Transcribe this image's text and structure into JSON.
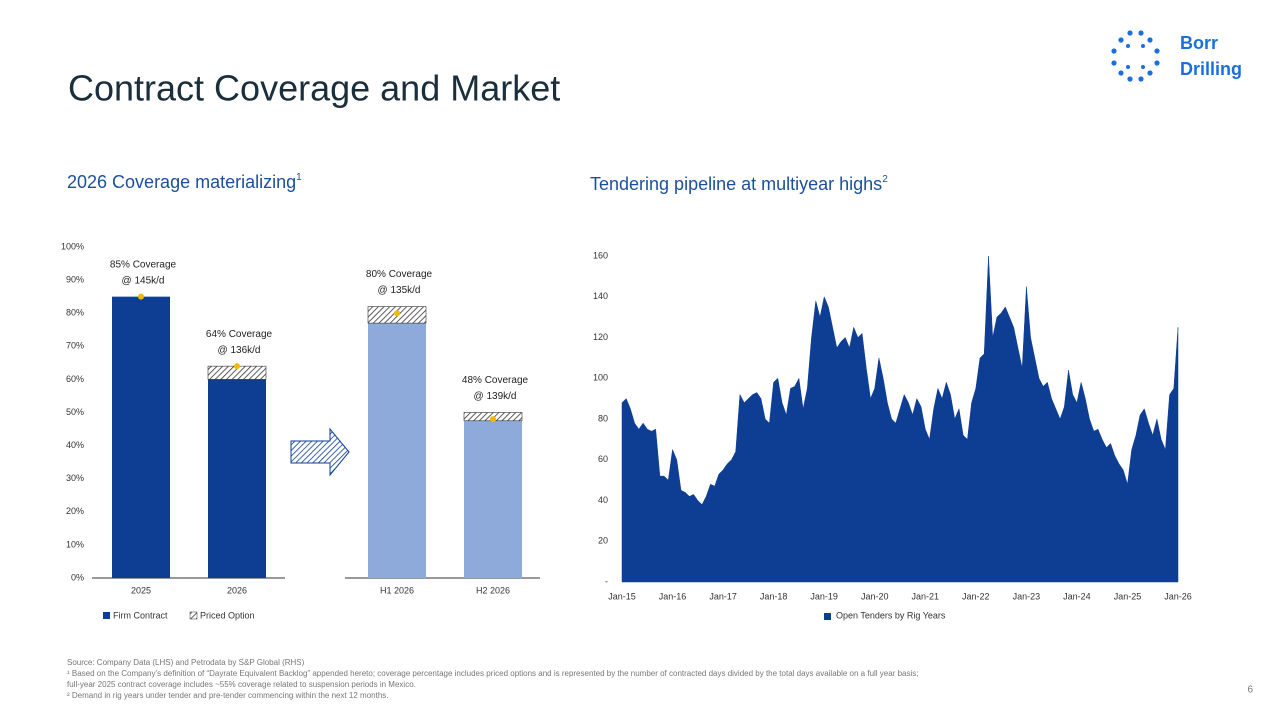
{
  "header": {
    "title": "Contract Coverage and Market",
    "logo": [
      "Borr",
      "Drilling"
    ]
  },
  "chart_data": [
    {
      "type": "bar",
      "stacked": true,
      "title": "2026 Coverage materializing",
      "title_note": "1",
      "categories": [
        "2025",
        "2026",
        "H1 2026",
        "H2 2026"
      ],
      "series": [
        {
          "name": "Firm Contract",
          "color": "#0d3e94",
          "colors": [
            "#0d3e94",
            "#0d3e94",
            "#8eaadb",
            "#8eaadb"
          ],
          "values": [
            85,
            60,
            77,
            47.5
          ]
        },
        {
          "name": "Priced Option",
          "color": "#333333",
          "pattern": "hatch",
          "values": [
            0,
            4,
            5,
            2.5
          ]
        }
      ],
      "coverage": {
        "color": "#f5b800",
        "values": [
          85,
          64,
          80,
          48
        ],
        "value_labels": [
          "85% Coverage",
          "64% Coverage",
          "80% Coverage",
          "48% Coverage"
        ],
        "rates": [
          "@ 145k/d",
          "@ 136k/d",
          "@ 135k/d",
          "@ 139k/d"
        ]
      },
      "ylim": [
        0,
        100
      ],
      "yticks": [
        {
          "value": 0,
          "label": "0%"
        },
        {
          "value": 10,
          "label": "10%"
        },
        {
          "value": 20,
          "label": "20%"
        },
        {
          "value": 30,
          "label": "30%"
        },
        {
          "value": 40,
          "label": "40%"
        },
        {
          "value": 50,
          "label": "50%"
        },
        {
          "value": 60,
          "label": "60%"
        },
        {
          "value": 70,
          "label": "70%"
        },
        {
          "value": 80,
          "label": "80%"
        },
        {
          "value": 90,
          "label": "90%"
        },
        {
          "value": 100,
          "label": "100%"
        }
      ]
    },
    {
      "type": "area",
      "title": "Tendering pipeline at multiyear highs",
      "title_note": "2",
      "x": [
        "2015-01",
        "2015-02",
        "2015-03",
        "2015-04",
        "2015-05",
        "2015-06",
        "2015-07",
        "2015-08",
        "2015-09",
        "2015-10",
        "2015-11",
        "2015-12",
        "2016-01",
        "2016-02",
        "2016-03",
        "2016-04",
        "2016-05",
        "2016-06",
        "2016-07",
        "2016-08",
        "2016-09",
        "2016-10",
        "2016-11",
        "2016-12",
        "2017-01",
        "2017-02",
        "2017-03",
        "2017-04",
        "2017-05",
        "2017-06",
        "2017-07",
        "2017-08",
        "2017-09",
        "2017-10",
        "2017-11",
        "2017-12",
        "2018-01",
        "2018-02",
        "2018-03",
        "2018-04",
        "2018-05",
        "2018-06",
        "2018-07",
        "2018-08",
        "2018-09",
        "2018-10",
        "2018-11",
        "2018-12",
        "2019-01",
        "2019-02",
        "2019-03",
        "2019-04",
        "2019-05",
        "2019-06",
        "2019-07",
        "2019-08",
        "2019-09",
        "2019-10",
        "2019-11",
        "2019-12",
        "2020-01",
        "2020-02",
        "2020-03",
        "2020-04",
        "2020-05",
        "2020-06",
        "2020-07",
        "2020-08",
        "2020-09",
        "2020-10",
        "2020-11",
        "2020-12",
        "2021-01",
        "2021-02",
        "2021-03",
        "2021-04",
        "2021-05",
        "2021-06",
        "2021-07",
        "2021-08",
        "2021-09",
        "2021-10",
        "2021-11",
        "2021-12",
        "2022-01",
        "2022-02",
        "2022-03",
        "2022-04",
        "2022-05",
        "2022-06",
        "2022-07",
        "2022-08",
        "2022-09",
        "2022-10",
        "2022-11",
        "2022-12",
        "2023-01",
        "2023-02",
        "2023-03",
        "2023-04",
        "2023-05",
        "2023-06",
        "2023-07",
        "2023-08",
        "2023-09",
        "2023-10",
        "2023-11",
        "2023-12",
        "2024-01",
        "2024-02",
        "2024-03",
        "2024-04",
        "2024-05",
        "2024-06",
        "2024-07",
        "2024-08",
        "2024-09",
        "2024-10",
        "2024-11",
        "2024-12",
        "2025-01",
        "2025-02",
        "2025-03",
        "2025-04",
        "2025-05",
        "2025-06",
        "2025-07",
        "2025-08",
        "2025-09",
        "2025-10",
        "2025-11",
        "2025-12",
        "2026-01"
      ],
      "series": [
        {
          "name": "Open Tenders by Rig Years",
          "color": "#0d3e94",
          "values": [
            88,
            90,
            85,
            78,
            75,
            78,
            75,
            74,
            75,
            52,
            52,
            50,
            65,
            60,
            45,
            44,
            42,
            43,
            40,
            38,
            42,
            48,
            47,
            53,
            55,
            58,
            60,
            64,
            92,
            88,
            90,
            92,
            93,
            90,
            80,
            78,
            98,
            100,
            88,
            82,
            95,
            96,
            100,
            85,
            95,
            120,
            138,
            130,
            140,
            135,
            125,
            115,
            118,
            120,
            115,
            125,
            120,
            122,
            105,
            90,
            95,
            110,
            100,
            88,
            80,
            78,
            85,
            92,
            88,
            82,
            90,
            86,
            75,
            70,
            85,
            95,
            90,
            98,
            92,
            80,
            85,
            72,
            70,
            88,
            95,
            110,
            112,
            160,
            120,
            130,
            132,
            135,
            130,
            125,
            115,
            105,
            145,
            120,
            110,
            100,
            96,
            98,
            90,
            85,
            80,
            86,
            104,
            92,
            88,
            98,
            90,
            80,
            74,
            75,
            70,
            66,
            68,
            62,
            58,
            55,
            48,
            65,
            72,
            82,
            85,
            78,
            72,
            80,
            70,
            65,
            92,
            95,
            125
          ]
        }
      ],
      "xlim": [
        "2015-01",
        "2026-01"
      ],
      "xticks": [
        {
          "value": "2015-01",
          "label": "Jan-15"
        },
        {
          "value": "2016-01",
          "label": "Jan-16"
        },
        {
          "value": "2017-01",
          "label": "Jan-17"
        },
        {
          "value": "2018-01",
          "label": "Jan-18"
        },
        {
          "value": "2019-01",
          "label": "Jan-19"
        },
        {
          "value": "2020-01",
          "label": "Jan-20"
        },
        {
          "value": "2021-01",
          "label": "Jan-21"
        },
        {
          "value": "2022-01",
          "label": "Jan-22"
        },
        {
          "value": "2023-01",
          "label": "Jan-23"
        },
        {
          "value": "2024-01",
          "label": "Jan-24"
        },
        {
          "value": "2025-01",
          "label": "Jan-25"
        },
        {
          "value": "2026-01",
          "label": "Jan-26"
        }
      ],
      "ylim": [
        0,
        160
      ],
      "yticks": [
        {
          "value": 0,
          "label": "-"
        },
        20,
        40,
        60,
        80,
        100,
        120,
        140,
        160
      ]
    }
  ],
  "footer": {
    "notes": [
      "Source: Company Data (LHS) and Petrodata by S&P Global (RHS)",
      "¹ Based on the Company’s definition of “Dayrate Equivalent Backlog” appended hereto; coverage percentage includes priced options and is represented by the number of contracted days divided by the total days available on a full year basis;",
      "full-year 2025 contract coverage includes ~55% coverage related to suspension periods in Mexico.",
      "² Demand in rig years under tender and pre-tender commencing within the next 12 months."
    ],
    "page": "6"
  }
}
